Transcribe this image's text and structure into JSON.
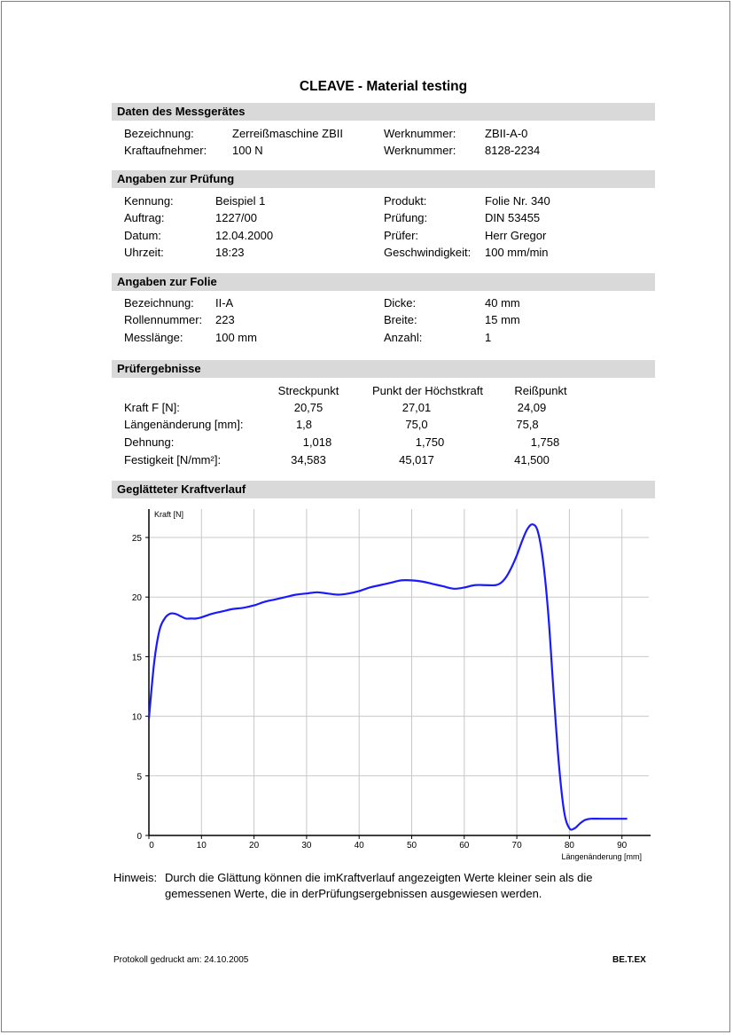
{
  "title": "CLEAVE - Material testing",
  "sections": {
    "device": "Daten des Messgerätes",
    "test": "Angaben zur Prüfung",
    "film": "Angaben zur Folie",
    "results": "Prüfergebnisse",
    "curve": "Geglätteter Kraftverlauf"
  },
  "device": {
    "row1": {
      "label": "Bezeichnung:",
      "value": "Zerreißmaschine ZBII",
      "label2": "Werknummer:",
      "value2": "ZBII-A-0"
    },
    "row2": {
      "label": "Kraftaufnehmer:",
      "value": "100 N",
      "label2": "Werknummer:",
      "value2": "8128-2234"
    }
  },
  "test": {
    "row1": {
      "label": "Kennung:",
      "value": "Beispiel 1",
      "label2": "Produkt:",
      "value2": "Folie Nr. 340"
    },
    "row2": {
      "label": "Auftrag:",
      "value": "1227/00",
      "label2": "Prüfung:",
      "value2": "DIN 53455"
    },
    "row3": {
      "label": "Datum:",
      "value": "12.04.2000",
      "label2": "Prüfer:",
      "value2": "Herr Gregor"
    },
    "row4": {
      "label": "Uhrzeit:",
      "value": "18:23",
      "label2": "Geschwindigkeit:",
      "value2": "100 mm/min"
    }
  },
  "film": {
    "row1": {
      "label": "Bezeichnung:",
      "value": "II-A",
      "label2": "Dicke:",
      "value2": "40 mm"
    },
    "row2": {
      "label": "Rollennummer:",
      "value": "223",
      "label2": "Breite:",
      "value2": "15 mm"
    },
    "row3": {
      "label": "Messlänge:",
      "value": "100 mm",
      "label2": "Anzahl:",
      "value2": "1"
    }
  },
  "results": {
    "headers": [
      "Streckpunkt",
      "Punkt der Höchstkraft",
      "Reißpunkt"
    ],
    "rows": [
      {
        "label": "Kraft F [N]:",
        "values": [
          "20,75",
          "27,01",
          "24,09"
        ]
      },
      {
        "label": "Längenänderung [mm]:",
        "values": [
          "1,8",
          "75,0",
          "75,8"
        ]
      },
      {
        "label": "Dehnung:",
        "values": [
          "1,018",
          "1,750",
          "1,758"
        ]
      },
      {
        "label": "Festigkeit [N/mm²]:",
        "values": [
          "34,583",
          "45,017",
          "41,500"
        ]
      }
    ]
  },
  "chart_data": {
    "type": "line",
    "title": "",
    "xlabel": "Längenänderung [mm]",
    "ylabel": "Kraft [N]",
    "xlim": [
      0,
      95
    ],
    "ylim": [
      0,
      27
    ],
    "xticks": [
      0,
      10,
      20,
      30,
      40,
      50,
      60,
      70,
      80,
      90
    ],
    "yticks": [
      0,
      5,
      10,
      15,
      20,
      25
    ],
    "grid": true,
    "line_color": "#1a1aff",
    "series": [
      {
        "x": [
          0,
          1,
          2,
          3,
          4,
          5,
          6,
          7,
          8,
          9,
          10,
          12,
          14,
          16,
          18,
          20,
          22,
          24,
          26,
          28,
          30,
          32,
          34,
          36,
          38,
          40,
          42,
          44,
          46,
          48,
          50,
          52,
          54,
          56,
          58,
          60,
          62,
          64,
          66,
          67,
          68,
          69,
          70,
          71,
          72,
          73,
          74,
          75,
          76,
          77,
          78,
          79,
          80,
          81,
          82,
          83,
          84,
          86,
          88,
          90,
          91
        ],
        "y": [
          9.8,
          14.5,
          17.2,
          18.2,
          18.6,
          18.6,
          18.4,
          18.2,
          18.2,
          18.2,
          18.3,
          18.6,
          18.8,
          19.0,
          19.1,
          19.3,
          19.6,
          19.8,
          20.0,
          20.2,
          20.3,
          20.4,
          20.3,
          20.2,
          20.3,
          20.5,
          20.8,
          21.0,
          21.2,
          21.4,
          21.4,
          21.3,
          21.1,
          20.9,
          20.7,
          20.8,
          21.0,
          21.0,
          21.0,
          21.2,
          21.7,
          22.5,
          23.5,
          24.7,
          25.7,
          26.1,
          25.5,
          23.0,
          18.5,
          12.0,
          6.0,
          2.0,
          0.6,
          0.6,
          1.0,
          1.3,
          1.4,
          1.4,
          1.4,
          1.4,
          1.4
        ]
      }
    ]
  },
  "note": {
    "label": "Hinweis:",
    "line1": "Durch die Glättung können die imKraftverlauf angezeigten Werte kleiner sein als die",
    "line2": "gemessenen Werte, die in derPrüfungsergebnissen ausgewiesen werden."
  },
  "footer": {
    "printed": "Protokoll gedruckt am: 24.10.2005",
    "brand": "BE.T.EX"
  }
}
